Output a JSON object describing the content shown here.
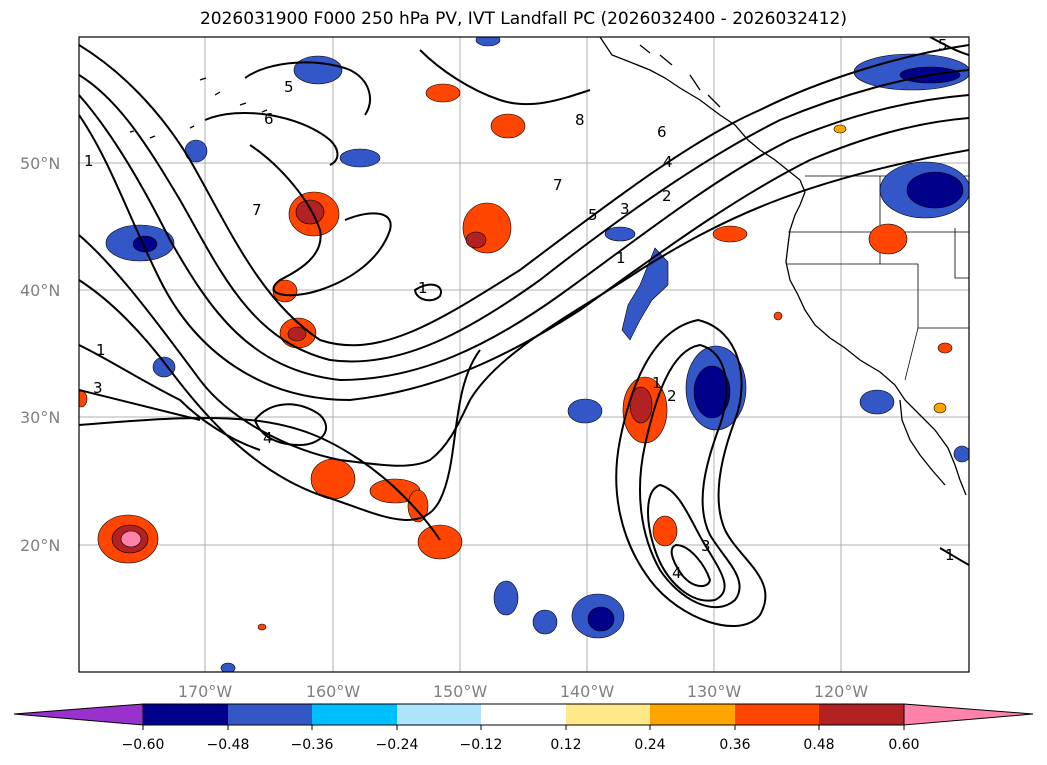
{
  "title": "2026031900 F000 250 hPa PV, IVT Landfall PC (2026032400 - 2026032412)",
  "latitude_labels": [
    "50°N",
    "40°N",
    "30°N",
    "20°N"
  ],
  "longitude_labels": [
    "170°W",
    "160°W",
    "150°W",
    "140°W",
    "130°W",
    "120°W"
  ],
  "colorbar": {
    "colors": [
      "#9932cc",
      "#00008b",
      "#3457c8",
      "#00bfff",
      "#ade3fb",
      "#ffffff",
      "#ffe88a",
      "#ffa500",
      "#ff4500",
      "#b22222",
      "#ff82ab"
    ],
    "tick_labels": [
      "−0.60",
      "−0.48",
      "−0.36",
      "−0.24",
      "−0.12",
      "0.12",
      "0.24",
      "0.36",
      "0.48",
      "0.60"
    ]
  },
  "contour_labels": [
    "5",
    "6",
    "7",
    "1",
    "1",
    "3",
    "8",
    "6",
    "4",
    "4",
    "7",
    "5",
    "3",
    "2",
    "1",
    "1",
    "2",
    "1",
    "3",
    "4",
    "5",
    "1"
  ]
}
